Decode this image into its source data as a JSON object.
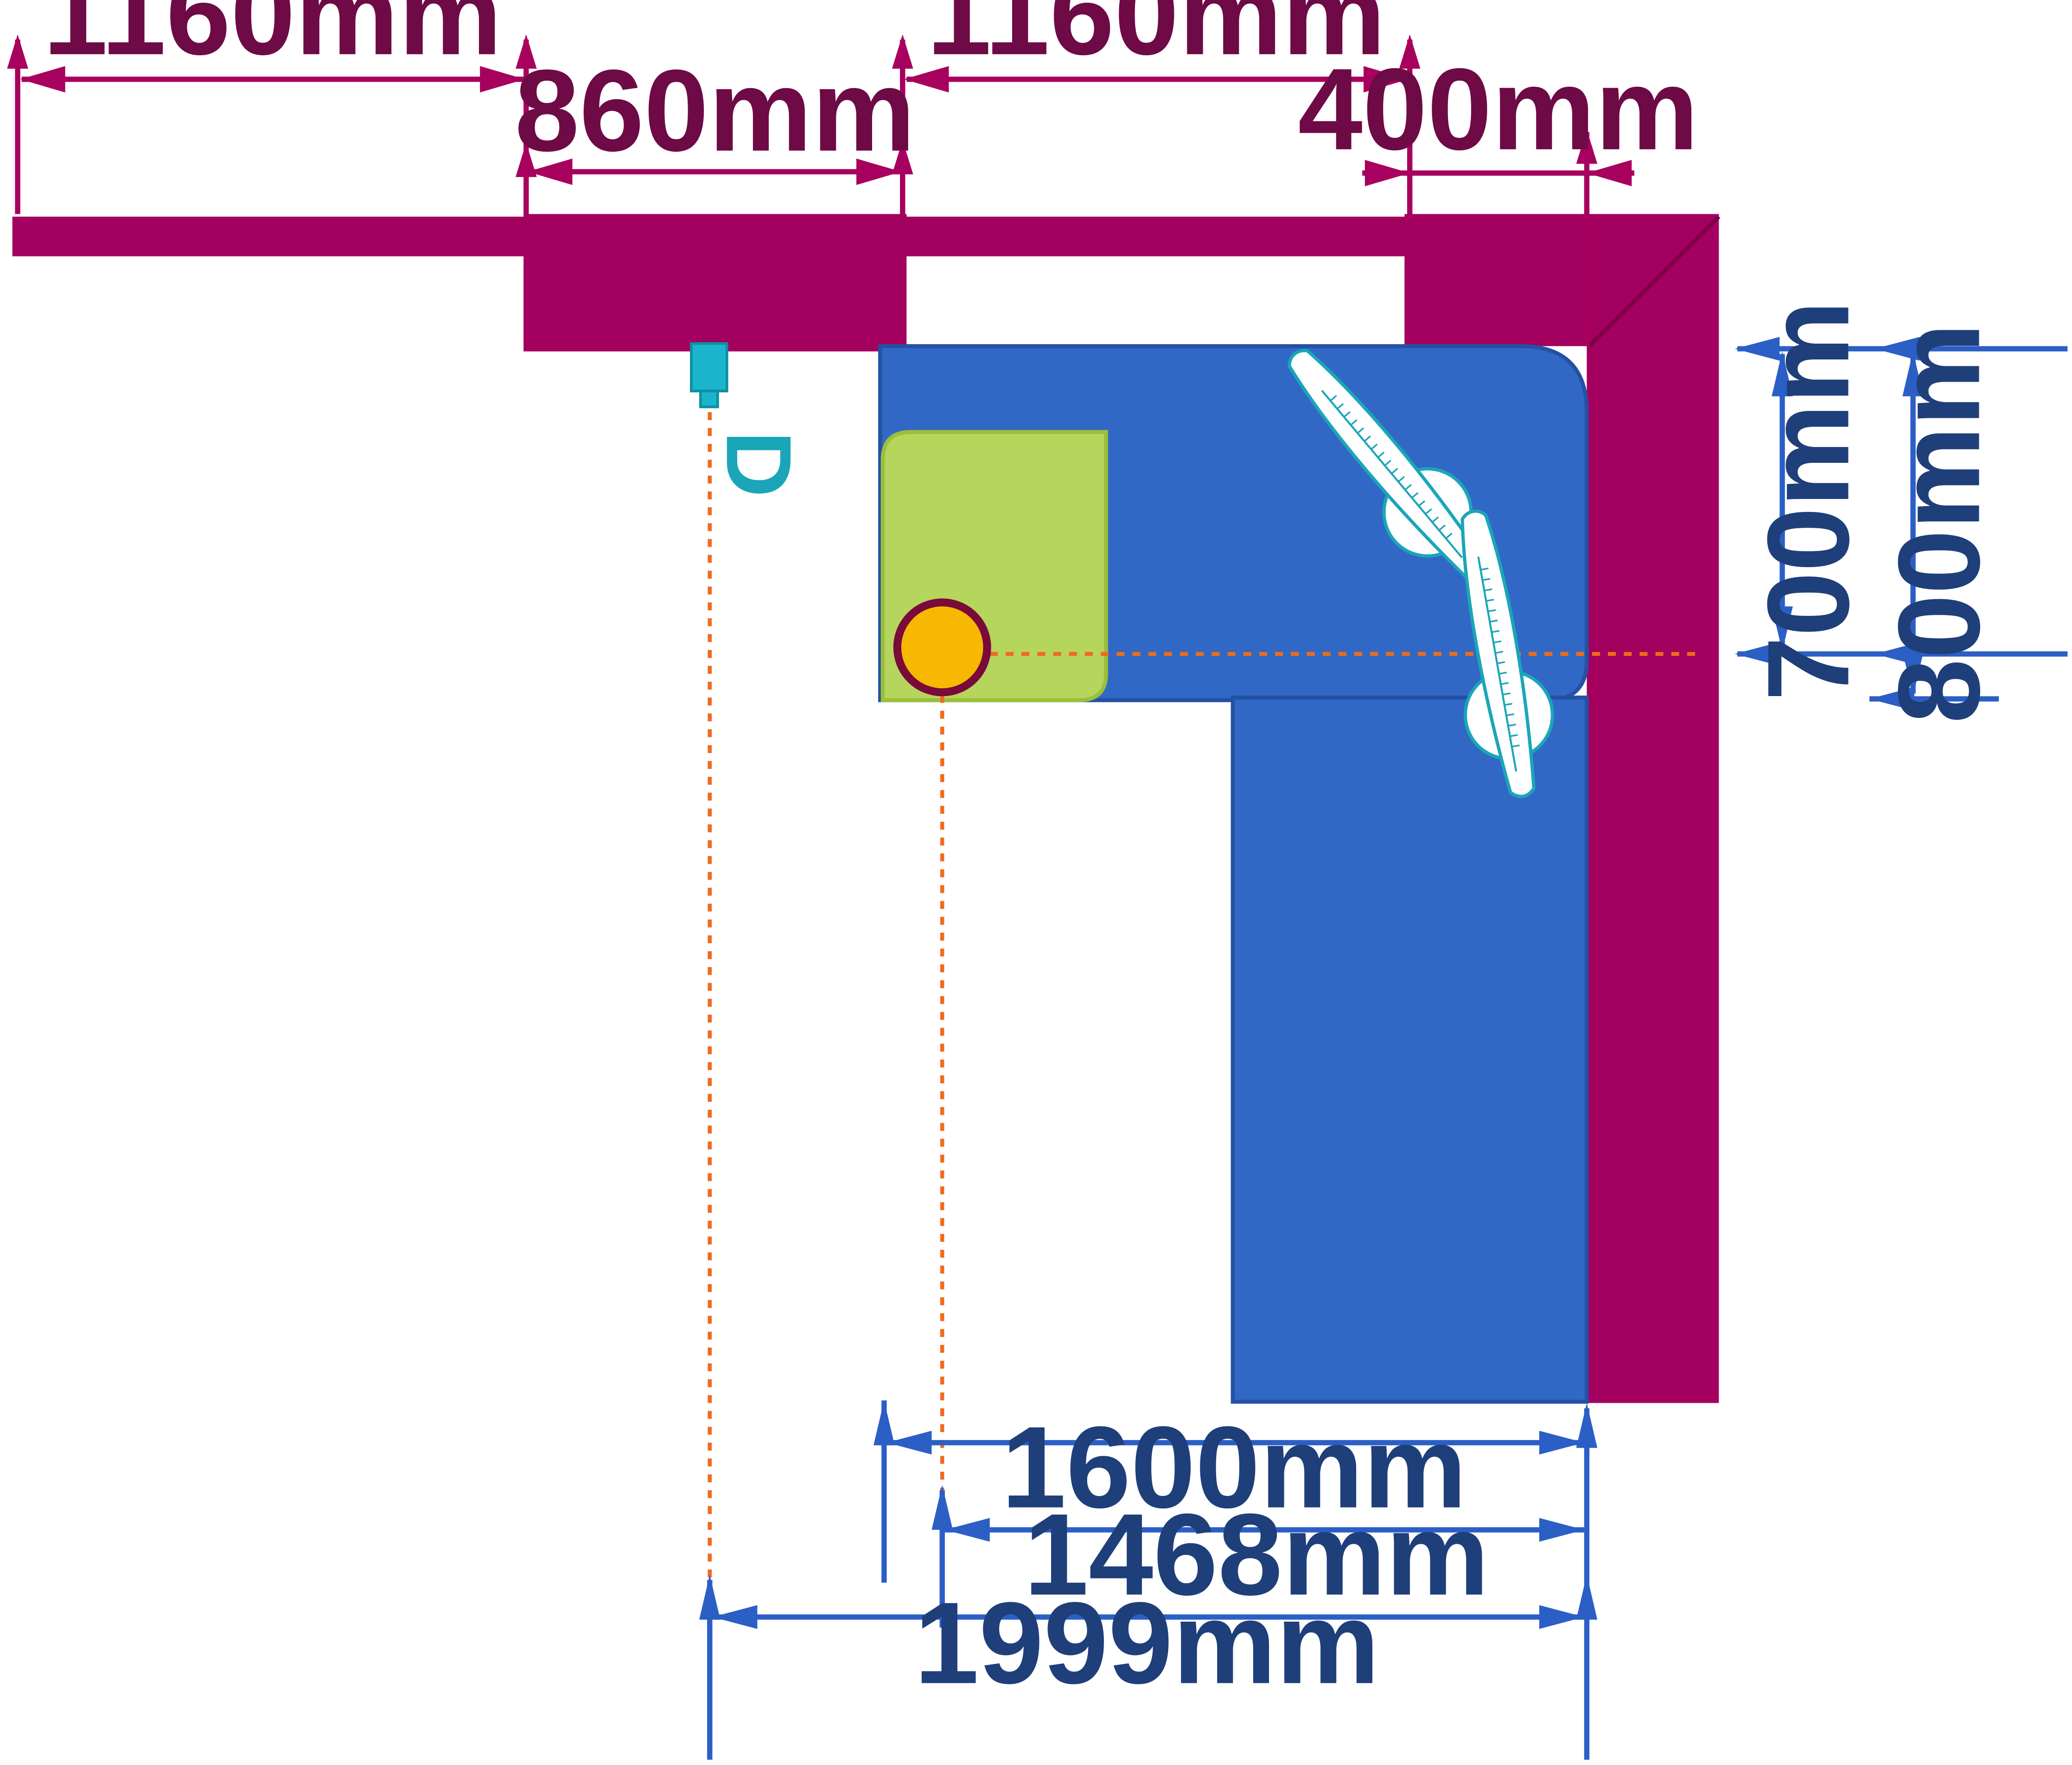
{
  "colors": {
    "wall": "#a3005f",
    "wall_dim": "#a8005e",
    "bench": "#3168c6",
    "bench_edge": "#2451a3",
    "sink_area": "#b5d55d",
    "sink_area_edge": "#9bbf3a",
    "sink": "#f6b800",
    "sink_ring": "#7a0a3a",
    "guide": "#f06a1e",
    "dim_blue": "#2b5fc6",
    "tap": "#1ab5cc",
    "pan_outline": "#1aa6b8"
  },
  "icons": {
    "tap": "tap-icon",
    "sink": "sink-icon",
    "pan_top": "frying-pan-icon",
    "pan_bottom": "frying-pan-icon"
  },
  "wall_dimensions": [
    {
      "label": "1160mm"
    },
    {
      "label": "860mm"
    },
    {
      "label": "1160mm"
    },
    {
      "label": "400mm"
    }
  ],
  "side_dimensions": [
    {
      "label": "700mm"
    },
    {
      "label": "800mm"
    }
  ],
  "bottom_dimensions": [
    {
      "label": "1600mm"
    },
    {
      "label": "1468mm"
    },
    {
      "label": "1999mm"
    }
  ],
  "tap_label": "D"
}
